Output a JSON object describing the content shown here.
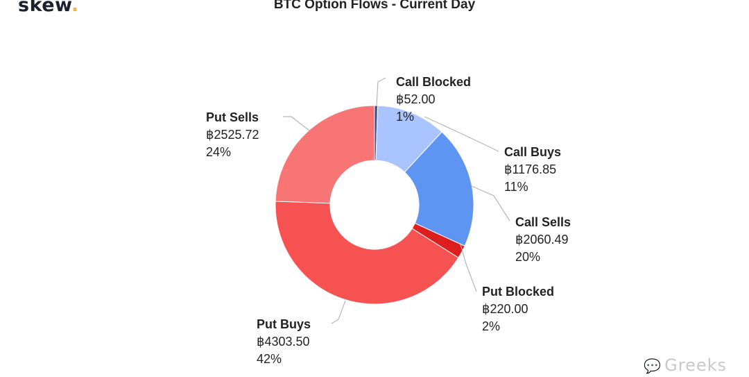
{
  "brand": {
    "logo_text": "skew",
    "logo_dot": "."
  },
  "watermark": {
    "text": "Greeks"
  },
  "chart_data": {
    "type": "pie",
    "donut": true,
    "title": "BTC Option Flows - Current Day",
    "currency_symbol": "฿",
    "slices": [
      {
        "name": "Call Blocked",
        "value": 52.0,
        "value_label": "฿52.00",
        "percent_label": "1%",
        "color": "#3d4a8a"
      },
      {
        "name": "Call Buys",
        "value": 1176.85,
        "value_label": "฿1176.85",
        "percent_label": "11%",
        "color": "#a9c4ff"
      },
      {
        "name": "Call Sells",
        "value": 2060.49,
        "value_label": "฿2060.49",
        "percent_label": "20%",
        "color": "#5f95f2"
      },
      {
        "name": "Put Blocked",
        "value": 220.0,
        "value_label": "฿220.00",
        "percent_label": "2%",
        "color": "#dd1e1e"
      },
      {
        "name": "Put Buys",
        "value": 4303.5,
        "value_label": "฿4303.50",
        "percent_label": "42%",
        "color": "#f65252"
      },
      {
        "name": "Put Sells",
        "value": 2525.72,
        "value_label": "฿2525.72",
        "percent_label": "24%",
        "color": "#f87575"
      }
    ]
  }
}
